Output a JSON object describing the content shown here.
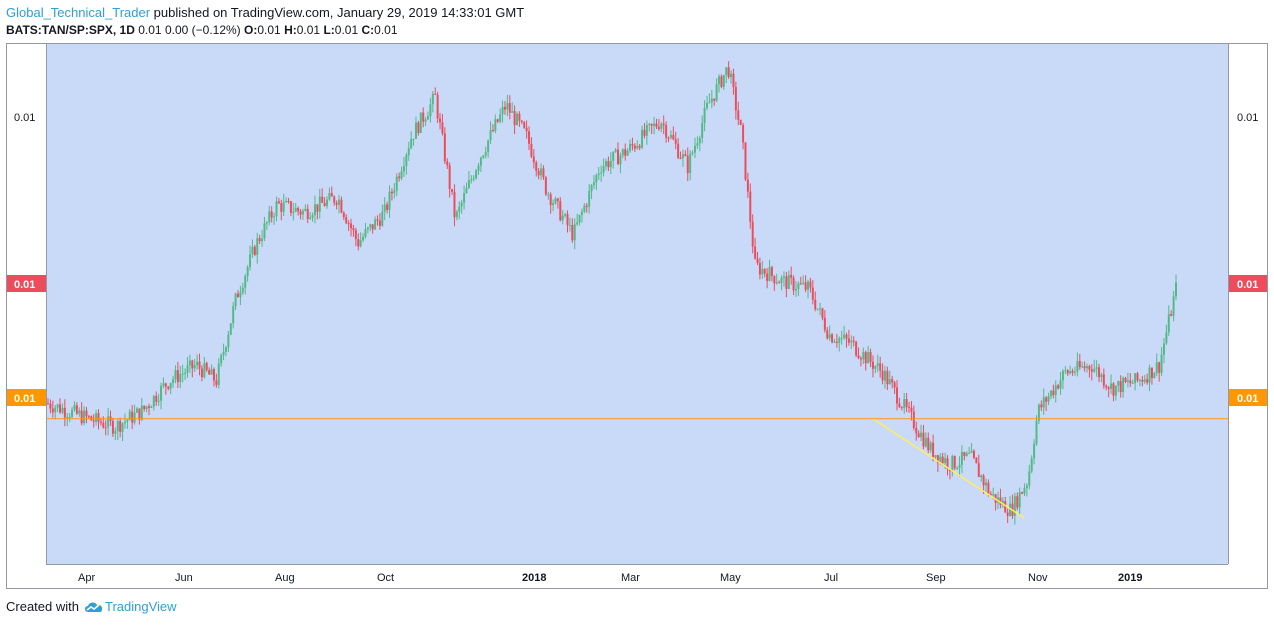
{
  "header": {
    "author": "Global_Technical_Trader",
    "published_text": "published on TradingView.com, January 29, 2019 14:33:01 GMT"
  },
  "legend": {
    "symbol": "BATS:TAN/SP:SPX, 1D",
    "last": "0.01",
    "change": "0.00",
    "change_pct": "(−0.12%)",
    "o_label": "O:",
    "o_value": "0.01",
    "h_label": "H:",
    "h_value": "0.01",
    "l_label": "L:",
    "l_value": "0.01",
    "c_label": "C:",
    "c_value": "0.01"
  },
  "footer": {
    "created_with": "Created with",
    "brand": "TradingView"
  },
  "colors": {
    "background": "#c9daf8",
    "up": "#53b987",
    "down": "#eb4d5c",
    "horizontal_line": "#ff9800",
    "trend_line": "#ffee58",
    "last_price_badge": "#eb4d5c",
    "level_badge": "#ff9800"
  },
  "chart_data": {
    "type": "candlestick",
    "x_tick_labels": [
      "Apr",
      "Jun",
      "Aug",
      "Oct",
      "2018",
      "Mar",
      "May",
      "Jul",
      "Sep",
      "Nov",
      "2019"
    ],
    "x_tick_bold": [
      "2018",
      "2019"
    ],
    "y_tick_labels": [
      "0.01"
    ],
    "last_price_label": "0.01",
    "horizontal_level_label": "0.01",
    "close_path": [
      [
        0,
        0.0102
      ],
      [
        1.2,
        0.01
      ],
      [
        2.0,
        0.0099
      ],
      [
        2.8,
        0.0101
      ],
      [
        3.6,
        0.0105
      ],
      [
        4.4,
        0.0107
      ],
      [
        5.0,
        0.0105
      ],
      [
        5.6,
        0.0116
      ],
      [
        6.2,
        0.0123
      ],
      [
        6.8,
        0.0128
      ],
      [
        7.6,
        0.0127
      ],
      [
        8.6,
        0.0129
      ],
      [
        9.2,
        0.0123
      ],
      [
        10.0,
        0.0127
      ],
      [
        10.8,
        0.0137
      ],
      [
        11.5,
        0.0142
      ],
      [
        12.1,
        0.0126
      ],
      [
        12.8,
        0.0134
      ],
      [
        13.6,
        0.0141
      ],
      [
        14.2,
        0.0137
      ],
      [
        14.8,
        0.013
      ],
      [
        15.6,
        0.0124
      ],
      [
        16.4,
        0.0133
      ],
      [
        17.2,
        0.0135
      ],
      [
        18.2,
        0.0139
      ],
      [
        19.0,
        0.0133
      ],
      [
        19.6,
        0.0141
      ],
      [
        20.2,
        0.0146
      ],
      [
        20.6,
        0.0137
      ],
      [
        21.0,
        0.012
      ],
      [
        21.8,
        0.0118
      ],
      [
        22.6,
        0.0117
      ],
      [
        23.2,
        0.0111
      ],
      [
        23.8,
        0.011
      ],
      [
        24.8,
        0.0106
      ],
      [
        25.5,
        0.0101
      ],
      [
        26.2,
        0.0096
      ],
      [
        26.8,
        0.0094
      ],
      [
        27.4,
        0.0095
      ],
      [
        28.0,
        0.009
      ],
      [
        28.6,
        0.0088
      ],
      [
        29.1,
        0.0092
      ],
      [
        29.4,
        0.0101
      ],
      [
        30.2,
        0.0106
      ],
      [
        31.0,
        0.0107
      ],
      [
        31.6,
        0.0104
      ],
      [
        32.4,
        0.0105
      ],
      [
        33.0,
        0.0107
      ],
      [
        33.5,
        0.0117
      ]
    ],
    "trend_line": [
      [
        24.5,
        0.01
      ],
      [
        29.0,
        0.0087
      ]
    ],
    "horizontal_level": 0.01,
    "ylim": [
      0.0081,
      0.0149
    ]
  }
}
